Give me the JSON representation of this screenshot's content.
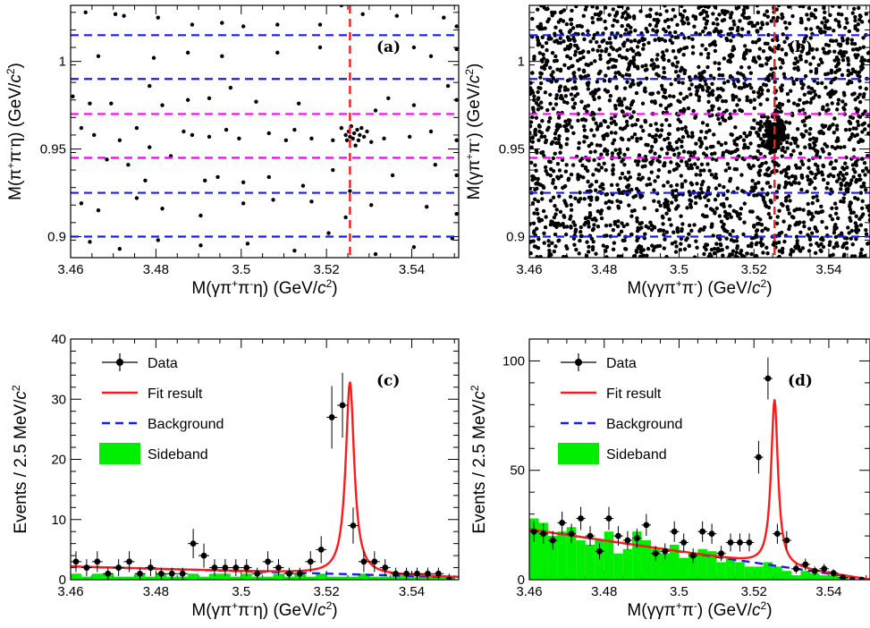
{
  "chart_data": [
    {
      "type": "scatter",
      "panel_label": "(a)",
      "xlabel_parts": [
        "M(γπ",
        "+",
        "π",
        "-",
        "η) (GeV/",
        "c",
        "2",
        ")"
      ],
      "ylabel_parts": [
        "M(π",
        "+",
        "π",
        "-",
        "η) (GeV/",
        "c",
        "2",
        ")"
      ],
      "xlim": [
        3.46,
        3.551
      ],
      "ylim": [
        0.888,
        1.032
      ],
      "xticks": [
        3.46,
        3.48,
        3.5,
        3.52,
        3.54
      ],
      "xtick_labels": [
        "3.46",
        "3.48",
        "3.5",
        "3.52",
        "3.54"
      ],
      "yticks": [
        0.9,
        0.95,
        1.0
      ],
      "ytick_labels": [
        "0.9",
        "0.95",
        "1"
      ],
      "horizontal_lines": [
        {
          "y": 1.015,
          "color": "#1a1aff"
        },
        {
          "y": 0.99,
          "color": "#1a1aff"
        },
        {
          "y": 0.97,
          "color": "#ff00ff"
        },
        {
          "y": 0.945,
          "color": "#ff00ff"
        },
        {
          "y": 0.925,
          "color": "#1a1aff"
        },
        {
          "y": 0.9,
          "color": "#1a1aff"
        }
      ],
      "vertical_line": {
        "x": 3.5255,
        "color": "#ff1a1a"
      },
      "points": [
        [
          3.4635,
          1.028
        ],
        [
          3.4705,
          1.027
        ],
        [
          3.4725,
          1.026
        ],
        [
          3.4805,
          1.025
        ],
        [
          3.4885,
          1.021
        ],
        [
          3.4955,
          1.022
        ],
        [
          3.5005,
          1.02
        ],
        [
          3.5085,
          1.021
        ],
        [
          3.5185,
          1.021
        ],
        [
          3.5235,
          1.032
        ],
        [
          3.5285,
          1.027
        ],
        [
          3.5475,
          1.025
        ],
        [
          3.5505,
          1.02
        ],
        [
          3.5365,
          1.026
        ],
        [
          3.4665,
          1.003
        ],
        [
          3.4795,
          1.002
        ],
        [
          3.4875,
          1.005
        ],
        [
          3.4955,
          1.003
        ],
        [
          3.5085,
          1.005
        ],
        [
          3.5185,
          1.008
        ],
        [
          3.5445,
          1.003
        ],
        [
          3.5505,
          1.007
        ],
        [
          3.5405,
          1.008
        ],
        [
          3.4605,
          0.98
        ],
        [
          3.4645,
          0.976
        ],
        [
          3.4695,
          0.976
        ],
        [
          3.4785,
          0.986
        ],
        [
          3.4815,
          0.975
        ],
        [
          3.4875,
          0.978
        ],
        [
          3.4925,
          0.979
        ],
        [
          3.4975,
          0.985
        ],
        [
          3.5035,
          0.977
        ],
        [
          3.5135,
          0.976
        ],
        [
          3.5315,
          0.972
        ],
        [
          3.5345,
          0.979
        ],
        [
          3.5405,
          0.975
        ],
        [
          3.5485,
          0.986
        ],
        [
          3.5505,
          0.978
        ],
        [
          3.4625,
          0.962
        ],
        [
          3.4655,
          0.958
        ],
        [
          3.4715,
          0.955
        ],
        [
          3.4755,
          0.962
        ],
        [
          3.4785,
          0.951
        ],
        [
          3.4865,
          0.96
        ],
        [
          3.4885,
          0.958
        ],
        [
          3.4925,
          0.957
        ],
        [
          3.4965,
          0.961
        ],
        [
          3.4995,
          0.956
        ],
        [
          3.5065,
          0.959
        ],
        [
          3.5105,
          0.955
        ],
        [
          3.5125,
          0.961
        ],
        [
          3.5165,
          0.956
        ],
        [
          3.5215,
          0.955
        ],
        [
          3.5235,
          0.962
        ],
        [
          3.5245,
          0.958
        ],
        [
          3.5248,
          0.955
        ],
        [
          3.5252,
          0.96
        ],
        [
          3.5255,
          0.957
        ],
        [
          3.5258,
          0.963
        ],
        [
          3.5262,
          0.956
        ],
        [
          3.5265,
          0.959
        ],
        [
          3.5268,
          0.952
        ],
        [
          3.5272,
          0.961
        ],
        [
          3.5275,
          0.955
        ],
        [
          3.5278,
          0.958
        ],
        [
          3.5282,
          0.962
        ],
        [
          3.5288,
          0.957
        ],
        [
          3.5295,
          0.96
        ],
        [
          3.5305,
          0.954
        ],
        [
          3.5335,
          0.956
        ],
        [
          3.5395,
          0.957
        ],
        [
          3.5445,
          0.96
        ],
        [
          3.5505,
          0.955
        ],
        [
          3.4685,
          0.944
        ],
        [
          3.4735,
          0.941
        ],
        [
          3.4775,
          0.932
        ],
        [
          3.4835,
          0.946
        ],
        [
          3.4915,
          0.932
        ],
        [
          3.4945,
          0.934
        ],
        [
          3.5005,
          0.931
        ],
        [
          3.5065,
          0.934
        ],
        [
          3.5145,
          0.929
        ],
        [
          3.5215,
          0.938
        ],
        [
          3.5255,
          0.926
        ],
        [
          3.5355,
          0.935
        ],
        [
          3.5455,
          0.941
        ],
        [
          3.5505,
          0.935
        ],
        [
          3.4625,
          0.919
        ],
        [
          3.4665,
          0.915
        ],
        [
          3.4755,
          0.922
        ],
        [
          3.4815,
          0.916
        ],
        [
          3.4905,
          0.912
        ],
        [
          3.5005,
          0.919
        ],
        [
          3.5075,
          0.921
        ],
        [
          3.5165,
          0.92
        ],
        [
          3.5245,
          0.911
        ],
        [
          3.5305,
          0.918
        ],
        [
          3.5435,
          0.917
        ],
        [
          3.5505,
          0.913
        ],
        [
          3.4645,
          0.897
        ],
        [
          3.4715,
          0.893
        ],
        [
          3.4805,
          0.898
        ],
        [
          3.4905,
          0.895
        ],
        [
          3.5015,
          0.896
        ],
        [
          3.5125,
          0.892
        ],
        [
          3.5205,
          0.902
        ],
        [
          3.5315,
          0.89
        ],
        [
          3.5405,
          0.894
        ],
        [
          3.5495,
          0.899
        ]
      ]
    },
    {
      "type": "scatter",
      "panel_label": "(b)",
      "xlabel_parts": [
        "M(γγπ",
        "+",
        "π",
        "-",
        ") (GeV/",
        "c",
        "2",
        ")"
      ],
      "ylabel_parts": [
        "M(γπ",
        "+",
        "π",
        "-",
        ") (GeV/",
        "c",
        "2",
        ")"
      ],
      "xlim": [
        3.46,
        3.551
      ],
      "ylim": [
        0.888,
        1.032
      ],
      "xticks": [
        3.46,
        3.48,
        3.5,
        3.52,
        3.54
      ],
      "xtick_labels": [
        "3.46",
        "3.48",
        "3.5",
        "3.52",
        "3.54"
      ],
      "yticks": [
        0.9,
        0.95,
        1.0
      ],
      "ytick_labels": [
        "0.9",
        "0.95",
        "1"
      ],
      "horizontal_lines": [
        {
          "y": 1.015,
          "color": "#1a1aff"
        },
        {
          "y": 0.99,
          "color": "#1a1aff"
        },
        {
          "y": 0.97,
          "color": "#ff00ff"
        },
        {
          "y": 0.945,
          "color": "#ff00ff"
        },
        {
          "y": 0.925,
          "color": "#1a1aff"
        },
        {
          "y": 0.9,
          "color": "#1a1aff"
        }
      ],
      "vertical_line": {
        "x": 3.5255,
        "color": "#ff1a1a"
      },
      "density": {
        "n_uniform_points": 2600,
        "cluster_center": [
          3.5255,
          0.958
        ],
        "cluster_width": [
          0.0012,
          0.004
        ],
        "n_cluster_points": 230
      }
    },
    {
      "type": "histogram",
      "panel_label": "(c)",
      "xlabel_parts": [
        "M(γπ",
        "+",
        "π",
        "-",
        "η) (GeV/",
        "c",
        "2",
        ")"
      ],
      "ylabel_parts": [
        "Events / 2.5 MeV/",
        "c",
        "2"
      ],
      "xlim": [
        3.46,
        3.551
      ],
      "ylim": [
        0,
        40
      ],
      "xticks": [
        3.46,
        3.48,
        3.5,
        3.52,
        3.54
      ],
      "xtick_labels": [
        "3.46",
        "3.48",
        "3.5",
        "3.52",
        "3.54"
      ],
      "yticks": [
        0,
        10,
        20,
        30,
        40
      ],
      "ytick_labels": [
        "0",
        "10",
        "20",
        "30",
        "40"
      ],
      "bin_width": 0.0025,
      "data": {
        "x": [
          3.46125,
          3.46375,
          3.46625,
          3.46875,
          3.47125,
          3.47375,
          3.47625,
          3.47875,
          3.48125,
          3.48375,
          3.48625,
          3.48875,
          3.49125,
          3.49375,
          3.49625,
          3.49875,
          3.50125,
          3.50375,
          3.50625,
          3.50875,
          3.51125,
          3.51375,
          3.51625,
          3.51875,
          3.52125,
          3.52375,
          3.52625,
          3.52875,
          3.53125,
          3.53375,
          3.53625,
          3.53875,
          3.54125,
          3.54375,
          3.54625,
          3.54875
        ],
        "y": [
          3,
          2,
          3,
          1,
          2,
          3,
          1,
          2,
          1,
          1,
          1,
          6,
          4,
          2,
          2,
          2,
          2,
          1,
          3,
          2,
          1,
          1,
          3,
          5,
          27,
          29,
          9,
          3,
          3,
          2,
          1,
          1,
          1,
          1,
          1,
          0
        ]
      },
      "sideband": [
        1,
        0.5,
        1,
        1,
        0.5,
        0.5,
        1,
        0.5,
        1,
        0.5,
        0.5,
        1,
        0.5,
        1,
        1,
        0.5,
        1,
        0.5,
        0.5,
        1,
        0.5,
        1,
        0.5,
        1,
        0.5,
        0.5,
        0.5,
        1,
        0.5,
        0.5,
        0.5,
        1,
        0.5,
        0.5,
        0.5,
        0.5
      ],
      "background_line": {
        "x": [
          3.46,
          3.551
        ],
        "y": [
          2.2,
          0.4
        ]
      },
      "fit_peak": {
        "mean": 3.5255,
        "sigma": 0.0012,
        "amplitude": 32.0
      },
      "legend": [
        {
          "label": "Data",
          "style": "marker"
        },
        {
          "label": "Fit result",
          "style": "line",
          "color": "#ff1a1a"
        },
        {
          "label": "Background",
          "style": "dashed",
          "color": "#1a1aff"
        },
        {
          "label": "Sideband",
          "style": "fill",
          "color": "#00ee00"
        }
      ]
    },
    {
      "type": "histogram",
      "panel_label": "(d)",
      "xlabel_parts": [
        "M(γγπ",
        "+",
        "π",
        "-",
        ") (GeV/",
        "c",
        "2",
        ")"
      ],
      "ylabel_parts": [
        "Events / 2.5 MeV/",
        "c",
        "2"
      ],
      "xlim": [
        3.46,
        3.551
      ],
      "ylim": [
        0,
        110
      ],
      "xticks": [
        3.46,
        3.48,
        3.5,
        3.52,
        3.54
      ],
      "xtick_labels": [
        "3.46",
        "3.48",
        "3.5",
        "3.52",
        "3.54"
      ],
      "yticks": [
        0,
        50,
        100
      ],
      "ytick_labels": [
        "0",
        "50",
        "100"
      ],
      "bin_width": 0.0025,
      "data": {
        "x": [
          3.46125,
          3.46375,
          3.46625,
          3.46875,
          3.47125,
          3.47375,
          3.47625,
          3.47875,
          3.48125,
          3.48375,
          3.48625,
          3.48875,
          3.49125,
          3.49375,
          3.49625,
          3.49875,
          3.50125,
          3.50375,
          3.50625,
          3.50875,
          3.51125,
          3.51375,
          3.51625,
          3.51875,
          3.52125,
          3.52375,
          3.52625,
          3.52875,
          3.53125,
          3.53375,
          3.53625,
          3.53875,
          3.54125,
          3.54375,
          3.54625,
          3.54875
        ],
        "y": [
          22,
          21,
          18,
          26,
          21,
          28,
          20,
          13,
          28,
          20,
          18,
          19,
          25,
          12,
          13,
          22,
          17,
          11,
          22,
          21,
          12,
          17,
          17,
          17,
          56,
          92,
          21,
          18,
          5,
          7,
          4,
          5,
          3,
          1,
          0,
          0
        ]
      },
      "sideband": [
        28,
        26,
        20,
        22,
        24,
        18,
        16,
        18,
        22,
        12,
        14,
        22,
        18,
        14,
        12,
        16,
        10,
        12,
        14,
        13,
        8,
        10,
        8,
        6,
        6,
        8,
        6,
        4,
        2,
        4,
        3,
        2,
        2,
        1,
        0,
        0
      ],
      "background_line": {
        "x": [
          3.46,
          3.551
        ],
        "y": [
          23,
          0
        ]
      },
      "fit_peak": {
        "mean": 3.5255,
        "sigma": 0.0011,
        "amplitude": 76.0
      },
      "legend": [
        {
          "label": "Data",
          "style": "marker"
        },
        {
          "label": "Fit result",
          "style": "line",
          "color": "#ff1a1a"
        },
        {
          "label": "Background",
          "style": "dashed",
          "color": "#1a1aff"
        },
        {
          "label": "Sideband",
          "style": "fill",
          "color": "#00ee00"
        }
      ]
    }
  ]
}
